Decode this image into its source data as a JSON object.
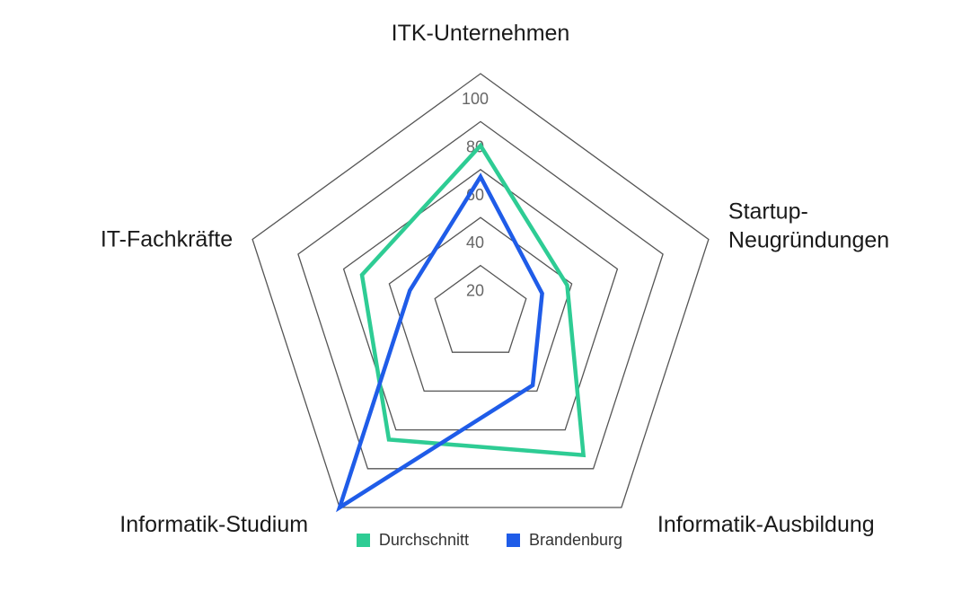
{
  "chart_data": {
    "type": "radar",
    "categories": [
      "ITK-Unternehmen",
      "Startup-Neugründungen",
      "Informatik-Ausbildung",
      "Informatik-Studium",
      "IT-Fachkräfte"
    ],
    "category_lines": [
      [
        "ITK-Unternehmen"
      ],
      [
        "Startup-",
        "Neugründungen"
      ],
      [
        "Informatik-Ausbildung"
      ],
      [
        "Informatik-Studium"
      ],
      [
        "IT-Fachkräfte"
      ]
    ],
    "rlim": [
      0,
      100
    ],
    "ticks": [
      20,
      40,
      60,
      80,
      100
    ],
    "grid": true,
    "legend_position": "bottom",
    "series": [
      {
        "name": "Durchschnitt",
        "color": "#2ecc94",
        "values": [
          70,
          38,
          73,
          65,
          52
        ]
      },
      {
        "name": "Brandenburg",
        "color": "#1f5ce8",
        "values": [
          57,
          27,
          37,
          100,
          31
        ]
      }
    ]
  }
}
